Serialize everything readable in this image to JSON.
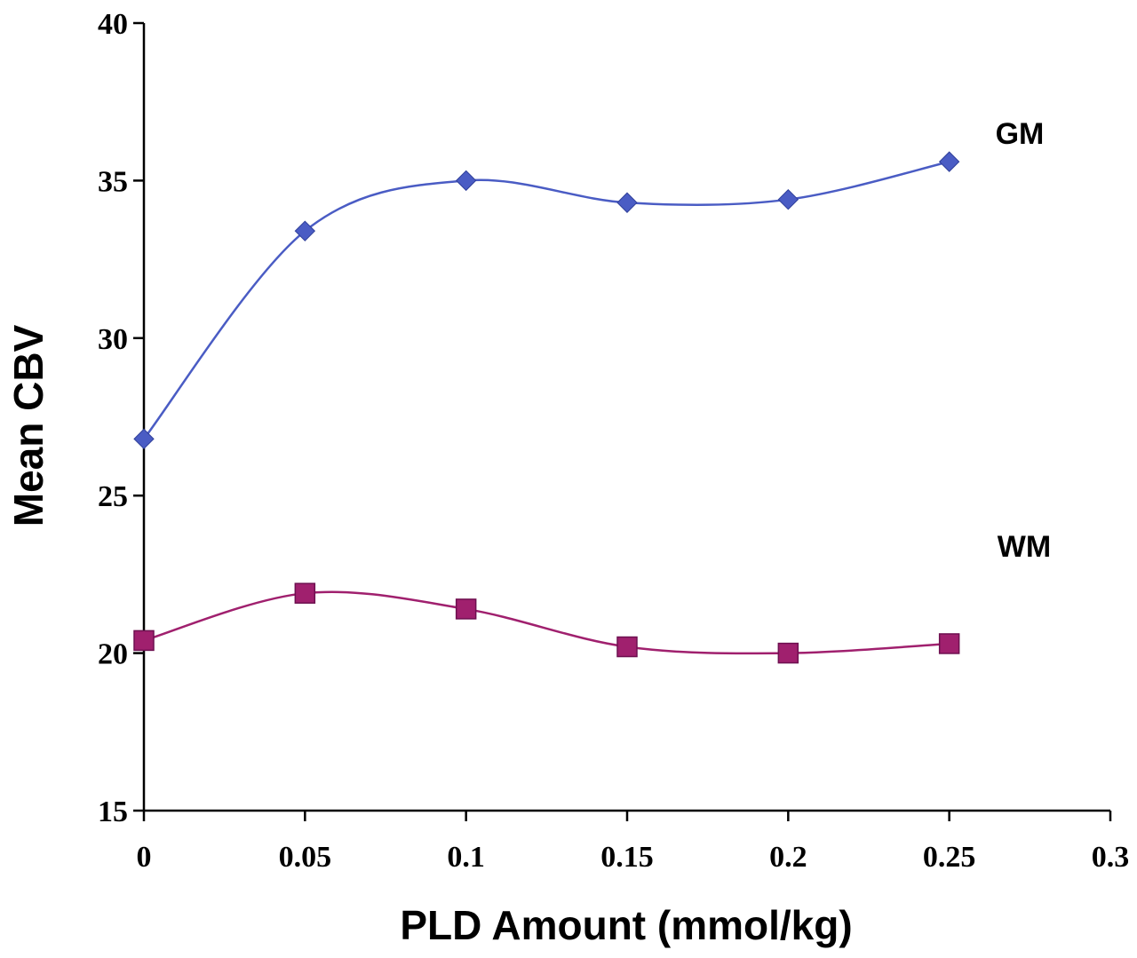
{
  "chart_data": {
    "type": "line",
    "xlabel": "PLD Amount (mmol/kg)",
    "ylabel": "Mean CBV",
    "xlim": [
      0,
      0.3
    ],
    "ylim": [
      15,
      40
    ],
    "x_ticks": [
      "0",
      "0.05",
      "0.1",
      "0.15",
      "0.2",
      "0.25",
      "0.3"
    ],
    "y_ticks": [
      "15",
      "20",
      "25",
      "30",
      "35",
      "40"
    ],
    "x_tick_values": [
      0,
      0.05,
      0.1,
      0.15,
      0.2,
      0.25,
      0.3
    ],
    "y_tick_values": [
      15,
      20,
      25,
      30,
      35,
      40
    ],
    "grid": false,
    "legend": "none",
    "smooth": true,
    "x": [
      0,
      0.05,
      0.1,
      0.15,
      0.2,
      0.25
    ],
    "series": [
      {
        "name": "GM",
        "values": [
          26.8,
          33.4,
          35.0,
          34.3,
          34.4,
          35.6
        ],
        "color": "#4a5cc4",
        "marker": "diamond"
      },
      {
        "name": "WM",
        "values": [
          20.4,
          21.9,
          21.4,
          20.2,
          20.0,
          20.3
        ],
        "color": "#a0206e",
        "marker": "square"
      }
    ]
  }
}
